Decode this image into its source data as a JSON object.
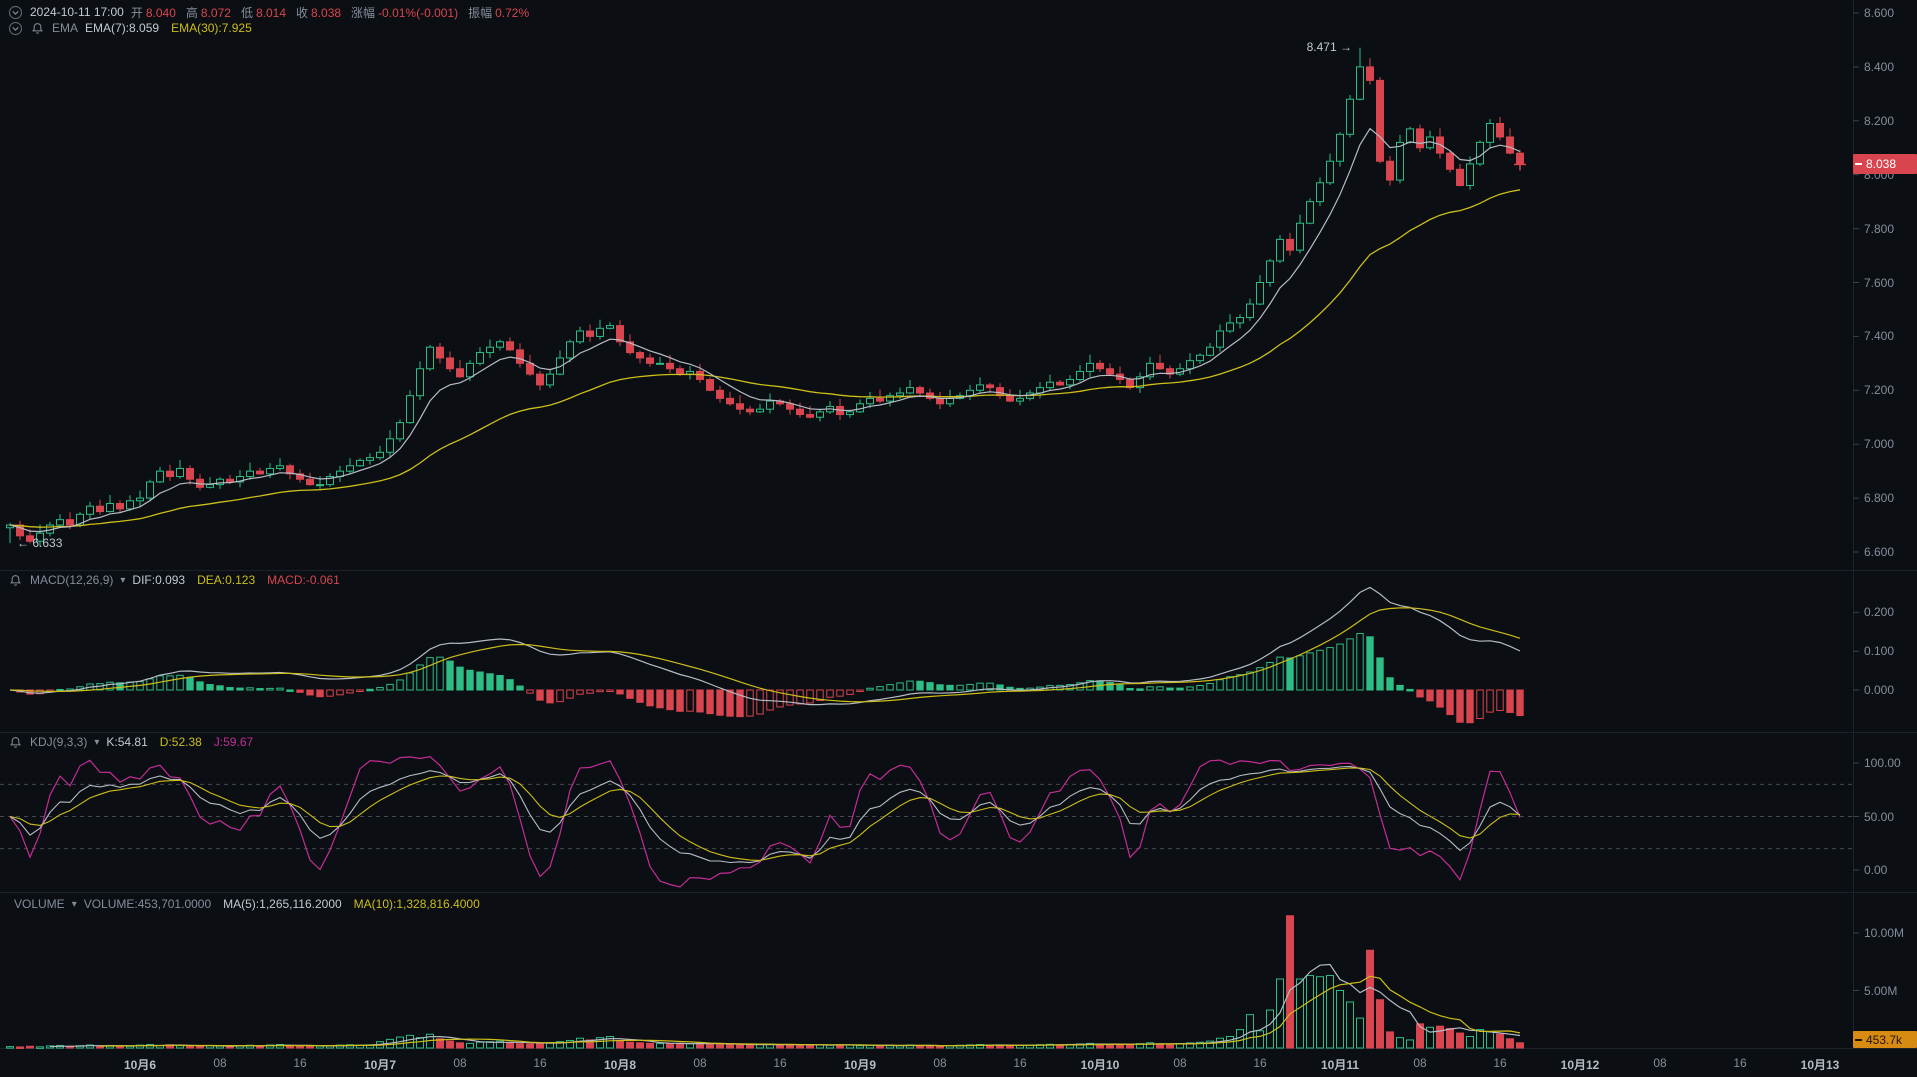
{
  "colors": {
    "bg": "#0b0e12",
    "up": "#2ebd85",
    "down": "#d9454f",
    "yellow": "#cdbe19",
    "white_line": "#b6bcc6",
    "magenta": "#c32d96",
    "gray_text": "#848e9c",
    "bright_text": "#c3c9d2",
    "orange": "#d78b12",
    "separator": "#1c222b",
    "tick": "#3a424c",
    "kdj_grid": "#565d66"
  },
  "header": {
    "row1": {
      "timestamp": "2024-10-11 17:00",
      "fields": [
        {
          "label": "开",
          "value": "8.040",
          "color": "#d9454f"
        },
        {
          "label": "高",
          "value": "8.072",
          "color": "#d9454f"
        },
        {
          "label": "低",
          "value": "8.014",
          "color": "#d9454f"
        },
        {
          "label": "收",
          "value": "8.038",
          "color": "#d9454f"
        },
        {
          "label": "涨幅",
          "value": "-0.01%(-0.001)",
          "color": "#d9454f"
        },
        {
          "label": "振幅",
          "value": "0.72%",
          "color": "#d9454f"
        }
      ]
    },
    "row2": {
      "group": "EMA",
      "items": [
        {
          "text": "EMA(7):8.059",
          "color": "#c3c9d2"
        },
        {
          "text": "EMA(30):7.925",
          "color": "#cdbe19"
        }
      ]
    }
  },
  "panes": {
    "macd": {
      "title": "MACD(12,26,9)",
      "values": [
        {
          "text": "DIF:0.093",
          "color": "#c3c9d2"
        },
        {
          "text": "DEA:0.123",
          "color": "#cdbe19"
        },
        {
          "text": "MACD:-0.061",
          "color": "#d9454f"
        }
      ],
      "axis": [
        {
          "t": "0.200",
          "v": 0.2
        },
        {
          "t": "0.100",
          "v": 0.1
        },
        {
          "t": "0.000",
          "v": 0.0
        }
      ]
    },
    "kdj": {
      "title": "KDJ(9,3,3)",
      "values": [
        {
          "text": "K:54.81",
          "color": "#c3c9d2"
        },
        {
          "text": "D:52.38",
          "color": "#cdbe19"
        },
        {
          "text": "J:59.67",
          "color": "#c32d96"
        }
      ],
      "axis": [
        {
          "t": "100.00",
          "v": 100
        },
        {
          "t": "50.00",
          "v": 50
        },
        {
          "t": "0.00",
          "v": 0
        }
      ],
      "guides": [
        80,
        50,
        20
      ]
    },
    "volume": {
      "title": "VOLUME",
      "values": [
        {
          "text": "VOLUME:453,701.0000",
          "color": "#848e9c"
        },
        {
          "text": "MA(5):1,265,116.2000",
          "color": "#c3c9d2"
        },
        {
          "text": "MA(10):1,328,816.4000",
          "color": "#cdbe19"
        }
      ],
      "axis": [
        {
          "t": "10.00M",
          "v": 10
        },
        {
          "t": "5.00M",
          "v": 5
        }
      ]
    }
  },
  "price_axis": {
    "labels": [
      {
        "t": "8.600",
        "v": 8.6
      },
      {
        "t": "8.400",
        "v": 8.4
      },
      {
        "t": "8.200",
        "v": 8.2
      },
      {
        "t": "8.000",
        "v": 8.0
      },
      {
        "t": "7.800",
        "v": 7.8
      },
      {
        "t": "7.600",
        "v": 7.6
      },
      {
        "t": "7.400",
        "v": 7.4
      },
      {
        "t": "7.200",
        "v": 7.2
      },
      {
        "t": "7.000",
        "v": 7.0
      },
      {
        "t": "6.800",
        "v": 6.8
      },
      {
        "t": "6.600",
        "v": 6.6
      }
    ]
  },
  "time_axis": {
    "labels": [
      {
        "t": "10月6",
        "i": 13,
        "major": true
      },
      {
        "t": "08",
        "i": 21
      },
      {
        "t": "16",
        "i": 29
      },
      {
        "t": "10月7",
        "i": 37,
        "major": true
      },
      {
        "t": "08",
        "i": 45
      },
      {
        "t": "16",
        "i": 53
      },
      {
        "t": "10月8",
        "i": 61,
        "major": true
      },
      {
        "t": "08",
        "i": 69
      },
      {
        "t": "16",
        "i": 77
      },
      {
        "t": "10月9",
        "i": 85,
        "major": true
      },
      {
        "t": "08",
        "i": 93
      },
      {
        "t": "16",
        "i": 101
      },
      {
        "t": "10月10",
        "i": 109,
        "major": true
      },
      {
        "t": "08",
        "i": 117
      },
      {
        "t": "16",
        "i": 125
      },
      {
        "t": "10月11",
        "i": 133,
        "major": true
      },
      {
        "t": "08",
        "i": 141
      },
      {
        "t": "16",
        "i": 149
      },
      {
        "t": "10月12",
        "i": 157,
        "major": true
      },
      {
        "t": "08",
        "i": 165
      },
      {
        "t": "16",
        "i": 173
      },
      {
        "t": "10月13",
        "i": 181,
        "major": true
      }
    ]
  },
  "badges": {
    "price": "8.038",
    "volume": "453.7k"
  },
  "chart_data": {
    "type": "candlestick",
    "interval": "1h",
    "title": "",
    "price_axis_range": [
      6.6,
      8.6
    ],
    "last_close": 8.038,
    "high_marker": {
      "index": 135,
      "price": 8.471,
      "text": "8.471 →"
    },
    "low_marker": {
      "index": 0,
      "price": 6.633,
      "text": "← 6.633"
    },
    "indicators": {
      "ema": [
        7,
        30
      ],
      "macd": [
        12,
        26,
        9
      ],
      "kdj": [
        9,
        3,
        3
      ],
      "volume_ma": [
        5,
        10
      ]
    },
    "closes": [
      6.7,
      6.66,
      6.64,
      6.67,
      6.7,
      6.72,
      6.7,
      6.74,
      6.77,
      6.75,
      6.78,
      6.76,
      6.79,
      6.8,
      6.86,
      6.9,
      6.88,
      6.91,
      6.87,
      6.84,
      6.85,
      6.87,
      6.86,
      6.88,
      6.9,
      6.89,
      6.91,
      6.92,
      6.89,
      6.87,
      6.85,
      6.85,
      6.88,
      6.9,
      6.92,
      6.94,
      6.95,
      6.97,
      7.02,
      7.08,
      7.18,
      7.28,
      7.36,
      7.32,
      7.28,
      7.25,
      7.3,
      7.34,
      7.36,
      7.38,
      7.35,
      7.3,
      7.26,
      7.22,
      7.26,
      7.32,
      7.38,
      7.42,
      7.4,
      7.43,
      7.44,
      7.38,
      7.34,
      7.32,
      7.3,
      7.3,
      7.28,
      7.26,
      7.27,
      7.24,
      7.2,
      7.17,
      7.15,
      7.13,
      7.12,
      7.13,
      7.16,
      7.15,
      7.13,
      7.11,
      7.1,
      7.12,
      7.14,
      7.11,
      7.12,
      7.15,
      7.17,
      7.16,
      7.18,
      7.19,
      7.21,
      7.19,
      7.17,
      7.15,
      7.17,
      7.18,
      7.2,
      7.22,
      7.21,
      7.18,
      7.16,
      7.17,
      7.19,
      7.21,
      7.23,
      7.22,
      7.24,
      7.27,
      7.3,
      7.28,
      7.26,
      7.24,
      7.21,
      7.25,
      7.3,
      7.28,
      7.26,
      7.28,
      7.31,
      7.33,
      7.36,
      7.42,
      7.45,
      7.47,
      7.52,
      7.6,
      7.68,
      7.76,
      7.72,
      7.82,
      7.9,
      7.97,
      8.05,
      8.15,
      8.28,
      8.4,
      8.35,
      8.05,
      7.98,
      8.12,
      8.17,
      8.1,
      8.14,
      8.08,
      8.02,
      7.96,
      8.04,
      8.12,
      8.19,
      8.14,
      8.08,
      8.038
    ],
    "volumes_m": [
      0.12,
      0.09,
      0.15,
      0.1,
      0.18,
      0.22,
      0.14,
      0.2,
      0.26,
      0.16,
      0.22,
      0.18,
      0.15,
      0.25,
      0.3,
      0.22,
      0.28,
      0.2,
      0.16,
      0.18,
      0.22,
      0.17,
      0.14,
      0.19,
      0.24,
      0.21,
      0.26,
      0.3,
      0.22,
      0.18,
      0.15,
      0.17,
      0.21,
      0.25,
      0.28,
      0.24,
      0.27,
      0.55,
      0.75,
      0.95,
      1.1,
      0.9,
      1.2,
      0.8,
      0.6,
      0.45,
      0.4,
      0.5,
      0.55,
      0.6,
      0.45,
      0.38,
      0.35,
      0.42,
      0.48,
      0.55,
      0.65,
      0.85,
      0.7,
      0.9,
      1.0,
      0.6,
      0.5,
      0.45,
      0.4,
      0.38,
      0.35,
      0.4,
      0.36,
      0.42,
      0.38,
      0.33,
      0.3,
      0.28,
      0.26,
      0.3,
      0.34,
      0.28,
      0.25,
      0.27,
      0.3,
      0.26,
      0.24,
      0.28,
      0.25,
      0.2,
      0.22,
      0.18,
      0.24,
      0.2,
      0.26,
      0.22,
      0.19,
      0.17,
      0.21,
      0.24,
      0.27,
      0.3,
      0.26,
      0.22,
      0.2,
      0.23,
      0.26,
      0.29,
      0.32,
      0.28,
      0.31,
      0.35,
      0.4,
      0.35,
      0.3,
      0.28,
      0.33,
      0.38,
      0.45,
      0.36,
      0.32,
      0.38,
      0.44,
      0.5,
      0.6,
      0.85,
      1.0,
      1.6,
      2.9,
      1.5,
      3.3,
      6.0,
      11.5,
      6.0,
      6.3,
      6.2,
      6.3,
      5.0,
      4.0,
      2.6,
      8.5,
      4.2,
      1.4,
      0.9,
      0.7,
      2.1,
      1.8,
      1.9,
      1.7,
      1.3,
      1.0,
      1.6,
      1.4,
      1.2,
      0.8,
      0.4537
    ],
    "overrides": {
      "0": {
        "low": 6.633
      },
      "135": {
        "high": 8.471
      }
    }
  }
}
